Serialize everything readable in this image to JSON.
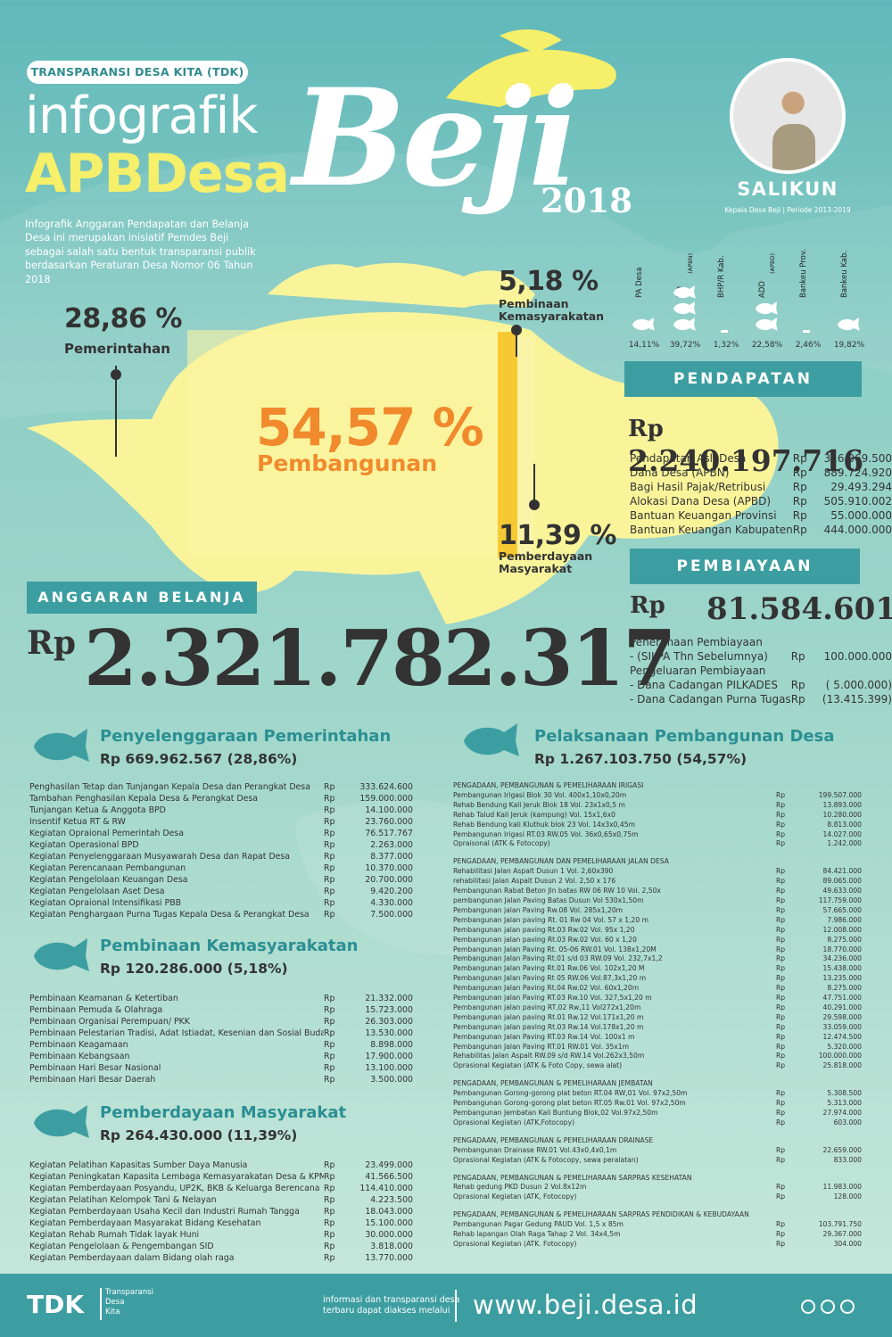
{
  "header": {
    "tag": "TRANSPARANSI DESA KITA (TDK)",
    "title_line1": "infografik",
    "title_line2": "APBDesa",
    "intro": "Infografik Anggaran Pendapatan dan Belanja Desa ini merupakan inisiatif Pemdes Beji sebagai salah satu bentuk transparansi publik berdasarkan Peraturan Desa Nomor 06 Tahun 2018",
    "village": "Beji",
    "year": "2018"
  },
  "head_of_village": {
    "name": "SALIKUN",
    "role": "Kepala Desa Beji | Periode 2013-2019"
  },
  "shares": {
    "pemerintahan": {
      "pct": "28,86 %",
      "label": "Pemerintahan",
      "value": 28.86
    },
    "pembangunan": {
      "pct": "54,57 %",
      "label": "Pembangunan",
      "value": 54.57
    },
    "pembinaan": {
      "pct": "5,18 %",
      "label": "Pembinaan Kemasyarakatan",
      "value": 5.18
    },
    "pemberdayaan": {
      "pct": "11,39 %",
      "label": "Pemberdayaan Masyarakat",
      "value": 11.39
    }
  },
  "income_sources": [
    {
      "label": "PA Desa",
      "sub": "",
      "pct": "14,11%",
      "fish": 1
    },
    {
      "label": "DD",
      "sub": "(APBN)",
      "pct": "39,72%",
      "fish": 3
    },
    {
      "label": "BHP/R Kab.",
      "sub": "",
      "pct": "1,32%",
      "fish": 0
    },
    {
      "label": "ADD",
      "sub": "(APBD)",
      "pct": "22,58%",
      "fish": 2
    },
    {
      "label": "Bankeu Prov.",
      "sub": "",
      "pct": "2,46%",
      "fish": 0
    },
    {
      "label": "Bankeu Kab.",
      "sub": "",
      "pct": "19,82%",
      "fish": 1
    }
  ],
  "pendapatan": {
    "title": "PENDAPATAN",
    "currency": "Rp",
    "total": "2.240.197.716",
    "rows": [
      {
        "label": "Pendapatan Asli Desa",
        "cur": "Rp",
        "val": "316.069.500"
      },
      {
        "label": "Dana Desa (APBN)",
        "cur": "Rp",
        "val": "889.724.920"
      },
      {
        "label": "Bagi Hasil Pajak/Retribusi",
        "cur": "Rp",
        "val": "29.493.294"
      },
      {
        "label": "Alokasi Dana Desa (APBD)",
        "cur": "Rp",
        "val": "505.910.002"
      },
      {
        "label": "Bantuan Keuangan Provinsi",
        "cur": "Rp",
        "val": "55.000.000"
      },
      {
        "label": "Bantuan Keuangan Kabupaten",
        "cur": "Rp",
        "val": "444.000.000"
      }
    ]
  },
  "pembiayaan": {
    "title": "PEMBIAYAAN",
    "currency": "Rp",
    "total": "81.584.601",
    "rows": [
      {
        "label": "Penerimaan Pembiayaan",
        "cur": "",
        "val": ""
      },
      {
        "label": "- (SILPA Thn Sebelumnya)",
        "cur": "Rp",
        "val": "100.000.000"
      },
      {
        "label": "Pengeluaran Pembiayaan",
        "cur": "",
        "val": ""
      },
      {
        "label": "- Dana Cadangan PILKADES",
        "cur": "Rp",
        "val": "( 5.000.000)"
      },
      {
        "label": "- Dana Cadangan Purna Tugas",
        "cur": "Rp",
        "val": "(13.415.399)"
      }
    ]
  },
  "belanja": {
    "title": "ANGGARAN BELANJA",
    "currency": "Rp",
    "total": "2.321.782.317"
  },
  "pemerintah": {
    "title": "Penyelenggaraan Pemerintahan",
    "sum": "Rp  669.962.567  (28,86%)",
    "items": [
      [
        "Penghasilan Tetap dan Tunjangan Kepala Desa dan Perangkat Desa",
        "Rp",
        "333.624.600"
      ],
      [
        "Tambahan Penghasilan Kepala Desa & Perangkat Desa",
        "Rp",
        "159.000.000"
      ],
      [
        "Tunjangan Ketua & Anggota BPD",
        "Rp",
        "14.100.000"
      ],
      [
        "Insentif Ketua RT & RW",
        "Rp",
        "23.760.000"
      ],
      [
        "Kegiatan Opraional Pemerintah Desa",
        "Rp",
        "76.517.767"
      ],
      [
        "Kegiatan Operasional BPD",
        "Rp",
        "2.263.000"
      ],
      [
        "Kegiatan Penyelenggaraan Musyawarah Desa dan Rapat Desa",
        "Rp",
        "8.377.000"
      ],
      [
        "Kegiatan Perencanaan Pembangunan",
        "Rp",
        "10.370.000"
      ],
      [
        "Kegiatan Pengelolaan Keuangan Desa",
        "Rp",
        "20.700.000"
      ],
      [
        "Kegiatan Pengelolaan Aset Desa",
        "Rp",
        "9.420.200"
      ],
      [
        "Kegiatan Opraional Intensifikasi PBB",
        "Rp",
        "4.330.000"
      ],
      [
        "Kegiatan Penghargaan Purna Tugas Kepala Desa & Perangkat Desa",
        "Rp",
        "7.500.000"
      ]
    ]
  },
  "pembinaan": {
    "title": "Pembinaan Kemasyarakatan",
    "sum": "Rp  120.286.000  (5,18%)",
    "items": [
      [
        "Pembinaan Keamanan & Ketertiban",
        "Rp",
        "21.332.000"
      ],
      [
        "Pembinaan Pemuda & Olahraga",
        "Rp",
        "15.723.000"
      ],
      [
        "Pembinaan Organisai Perempuan/ PKK",
        "Rp",
        "26.303.000"
      ],
      [
        "Pembinaan Pelestarian Tradisi, Adat Istiadat, Kesenian dan Sosial Budaya",
        "Rp",
        "13.530.000"
      ],
      [
        "Pembinaan Keagamaan",
        "Rp",
        "8.898.000"
      ],
      [
        "Pembinaan Kebangsaan",
        "Rp",
        "17.900.000"
      ],
      [
        "Pembinaan Hari Besar Nasional",
        "Rp",
        "13.100.000"
      ],
      [
        "Pembinaan Hari Besar Daerah",
        "Rp",
        "3.500.000"
      ]
    ]
  },
  "pemberdayaan": {
    "title": "Pemberdayaan Masyarakat",
    "sum": "Rp  264.430.000  (11,39%)",
    "items": [
      [
        "Kegiatan Pelatihan Kapasitas Sumber Daya Manusia",
        "Rp",
        "23.499.000"
      ],
      [
        "Kegiatan Peningkatan Kapasita Lembaga Kemasyarakatan Desa & KPMD",
        "Rp",
        "41.566.500"
      ],
      [
        "Kegiatan Pemberdayaan Posyandu, UP2K, BKB & Keluarga Berencana",
        "Rp",
        "114.410.000"
      ],
      [
        "Kegiatan Pelatihan Kelompok Tani & Nelayan",
        "Rp",
        "4.223.500"
      ],
      [
        "Kegiatan Pemberdayaan Usaha Kecil dan Industri Rumah Tangga",
        "Rp",
        "18.043.000"
      ],
      [
        "Kegiatan Pemberdayaan Masyarakat Bidang Kesehatan",
        "Rp",
        "15.100.000"
      ],
      [
        "Kegiatan Rehab Rumah Tidak layak Huni",
        "Rp",
        "30.000.000"
      ],
      [
        "Kegiatan Pengelolaan & Pengembangan SID",
        "Rp",
        "3.818.000"
      ],
      [
        "Kegiatan Pemberdayaan dalam Bidang olah raga",
        "Rp",
        "13.770.000"
      ]
    ]
  },
  "pembangunan": {
    "title": "Pelaksanaan Pembangunan Desa",
    "sum": "Rp 1.267.103.750  (54,57%)",
    "groups": [
      {
        "header": "PENGADAAN, PEMBANGUNAN & PEMELIHARAAN IRIGASI",
        "items": [
          [
            "Pembangunan Irigasi Blok 30 Vol. 400x1,10x0,20m",
            "Rp",
            "199.507.000"
          ],
          [
            "Rehab Bendung Kali Jeruk Blok 18 Vol. 23x1x0,5 m",
            "Rp",
            "13.893.000"
          ],
          [
            "Rehab Talud  Kali Jeruk (kampung) Vol. 15x1,6x0",
            "Rp",
            "10.280.000"
          ],
          [
            "Rehab Bendung kali Kluthuk blok 23 Vol. 14x3x0,45m",
            "Rp",
            "8.813.000"
          ],
          [
            "Pembangunan Irigasi RT.03 RW.05 Vol. 36x0,65x0,75m",
            "Rp",
            "14.027.000"
          ],
          [
            "Opraisonal (ATK & Fotocopy)",
            "Rp",
            "1.242.000"
          ]
        ]
      },
      {
        "header": "PENGADAAN, PEMBANGUNAN DAN PEMELIHARAAN JALAN DESA",
        "items": [
          [
            "Rehabilitasi Jalan Aspalt Dusun 1 Vol. 2,60x390",
            "Rp",
            "84.421.000"
          ],
          [
            "rehabilitasi Jalan Aspalt Dusun 2 Vol. 2,50 x 176",
            "Rp",
            "89.065.000"
          ],
          [
            "Pembangunan Rabat Beton Jln batas RW 06 RW 10 Vol. 2,50x",
            "Rp",
            "49.633.000"
          ],
          [
            "pembangunan Jalan Paving Batas Dusun Vol 530x1,50m",
            "Rp",
            "117.759.000"
          ],
          [
            "Pembangunan jalan Paving Rw.08 Vol. 285x1,20m",
            "Rp",
            "57.665.000"
          ],
          [
            "Pembangunan Jalan paving Rt. 01 Rw 04 Vol. 57 x 1,20 m",
            "Rp",
            "7.986.000"
          ],
          [
            "Pembangunan jalan paving Rt.03 Rw.02 Vol. 95x 1,20",
            "Rp",
            "12.008.000"
          ],
          [
            "Pembangunan jalan paving Rt.03 Rw.02 Vol. 60 x 1,20",
            "Rp",
            "8.275.000"
          ],
          [
            "Pembangunan Jalan Paving Rt. 05-06 RW.01 Vol. 138x1,20M",
            "Rp",
            "18.770.000"
          ],
          [
            "Pembangunan Jalan Paving Rt.01 s/d 03 RW.09 Vol. 232,7x1,2",
            "Rp",
            "34.236.000"
          ],
          [
            "Pembangunan Jalan Paving Rt.01 Rw.06 Vol. 102x1,20 M",
            "Rp",
            "15.438.000"
          ],
          [
            "Pembangunan Jalan Paving Rt 05 RW.06 Vol.87,3x1,20 m",
            "Rp",
            "13.235.000"
          ],
          [
            "Pembangunan Jalan Paving Rt.04 Rw.02 Vol. 60x1,20m",
            "Rp",
            "8.275.000"
          ],
          [
            "Pembangunan jalan Paving RT.03 Rw.10 Vol. 327,5x1,20 m",
            "Rp",
            "47.751.000"
          ],
          [
            "Pembangunan jalan paving RT,02 Rw,11 Vol272x1,20m",
            "Rp",
            "40.291.000"
          ],
          [
            "Pembangunan jalan paving Rt.01 Rw.12 Vol.171x1,20 m",
            "Rp",
            "29.598.000"
          ],
          [
            "Pembangunan jalan paving Rt.03 Rw.14 Vol.178x1,20 m",
            "Rp",
            "33.059.000"
          ],
          [
            "Pembangunan Jalan Paving RT.03 Rw.14 Vol. 100x1 m",
            "Rp",
            "12.474.500"
          ],
          [
            "Pembangunan Jalan Paving RT.01 RW.01 Vol. 35x1m",
            "Rp",
            "5.320.000"
          ],
          [
            "Rehabilitas Jalan Aspalt RW.09 s/d RW.14 Vol.262x3,50m",
            "Rp",
            "100.000.000"
          ],
          [
            "Oprasional Kegiatan (ATK & Foto Copy, sewa alat)",
            "Rp",
            "25.818.000"
          ]
        ]
      },
      {
        "header": "PENGADAAN, PEMBANGUNAN & PEMELIHARAAN JEMBATAN",
        "items": [
          [
            "Pembangunan Gorong-gorong plat beton RT.04 RW,01 Vol. 97x2,50m",
            "Rp",
            "5.308.500"
          ],
          [
            "Pembangunan Gorong-gorong plat beton RT.05 Rw.01 Vol. 97x2,50m",
            "Rp",
            "5.313.000"
          ],
          [
            "Pembangunan Jembatan Kali Buntung Blok,02 Vol.97x2,50m",
            "Rp",
            "27.974.000"
          ],
          [
            "Oprasional Kegiatan (ATK,Fotocopy)",
            "Rp",
            "603.000"
          ]
        ]
      },
      {
        "header": "PENGADAAN, PEMBANGUNAN & PEMELIHARAAN DRAINASE",
        "items": [
          [
            "Pembangunan Drainase RW.01 Vol.43x0,4x0,1m",
            "Rp",
            "22.659.000"
          ],
          [
            "Oprasional Kegiatan (ATK & Fotocopy, sewa peralatan)",
            "Rp",
            "833.000"
          ]
        ]
      },
      {
        "header": "PENGADAAN, PEMBANGUNAN & PEMELIHARAAN SARPRAS KESEHATAN",
        "items": [
          [
            "Rehab gedung PKD Dusun 2 Vol.8x12m",
            "Rp",
            "11.983.000"
          ],
          [
            "Oprasional Kegiatan (ATK, Fotocopy)",
            "Rp",
            "128.000"
          ]
        ]
      },
      {
        "header": "PENGADAAN, PEMBANGUNAN & PEMELIHARAAN SARPRAS PENDIDIKAN & KEBUDAYAAN",
        "items": [
          [
            "Pembangunan Pagar Gedung PAUD Vol. 1,5 x 85m",
            "Rp",
            "103.791.750"
          ],
          [
            "Rehab lapangan Olah Raga Tahap 2 Vol. 34x4,5m",
            "Rp",
            "29.367.000"
          ],
          [
            "Oprasional Kegiatan (ATK. Fotocopy)",
            "Rp",
            "304.000"
          ]
        ]
      }
    ]
  },
  "footer": {
    "logo": "TDK",
    "logo_sub": "Transparansi\nDesa\nKita",
    "info": "informasi dan transparansi desa\nterbaru dapat diakses melalui",
    "url": "www.beji.desa.id"
  },
  "colors": {
    "teal": "#3d9ea1",
    "yellow": "#f9f49a",
    "orange": "#f08a2c",
    "darkyellow": "#f6c933"
  }
}
